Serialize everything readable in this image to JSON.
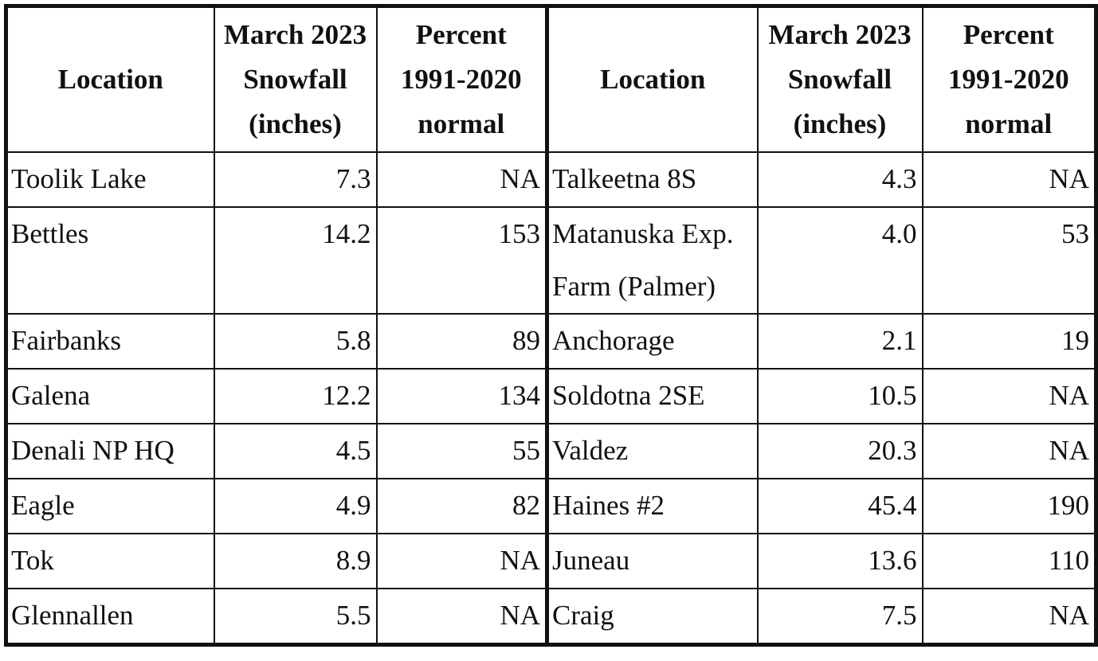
{
  "table": {
    "headers": [
      "Location",
      "March 2023 Snowfall (inches)",
      "Percent 1991-2020 normal",
      "Location",
      "March 2023 Snowfall (inches)",
      "Percent 1991-2020 normal"
    ],
    "rows": [
      [
        "Toolik Lake",
        "7.3",
        "NA",
        "Talkeetna 8S",
        "4.3",
        "NA"
      ],
      [
        "Bettles",
        "14.2",
        "153",
        "Matanuska Exp. Farm (Palmer)",
        "4.0",
        "53"
      ],
      [
        "Fairbanks",
        "5.8",
        "89",
        "Anchorage",
        "2.1",
        "19"
      ],
      [
        "Galena",
        "12.2",
        "134",
        "Soldotna 2SE",
        "10.5",
        "NA"
      ],
      [
        "Denali NP HQ",
        "4.5",
        "55",
        "Valdez",
        "20.3",
        "NA"
      ],
      [
        "Eagle",
        "4.9",
        "82",
        "Haines #2",
        "45.4",
        "190"
      ],
      [
        "Tok",
        "8.9",
        "NA",
        "Juneau",
        "13.6",
        "110"
      ],
      [
        "Glennallen",
        "5.5",
        "NA",
        "Craig",
        "7.5",
        "NA"
      ]
    ]
  }
}
